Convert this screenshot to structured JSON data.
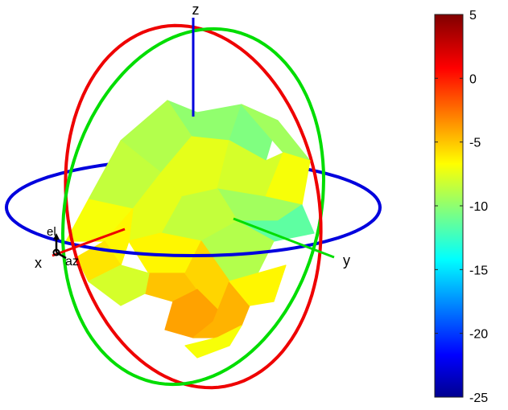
{
  "chart_data": {
    "type": "3d-radiation-pattern",
    "axis_labels": {
      "x": "x",
      "y": "y",
      "z": "z",
      "azimuth": "az",
      "elevation": "el"
    },
    "colorbar": {
      "ticks": [
        5,
        0,
        -5,
        -10,
        -15,
        -20,
        -25
      ],
      "range": [
        -25,
        5
      ],
      "colormap": "jet"
    },
    "ring_colors": {
      "xy_plane": "#0000dd",
      "xz_plane": "#ee0000",
      "yz_plane": "#00dd00"
    },
    "axis_colors": {
      "x": "#ee0000",
      "y": "#00dd00",
      "z": "#0000dd"
    },
    "surface_facets": [
      {
        "value": -9.5
      },
      {
        "value": -10
      },
      {
        "value": -8.5
      },
      {
        "value": -9
      },
      {
        "value": -7
      },
      {
        "value": -7.5
      },
      {
        "value": -8
      },
      {
        "value": -6.5
      },
      {
        "value": -9
      },
      {
        "value": -8
      },
      {
        "value": -11
      },
      {
        "value": -7
      },
      {
        "value": -6.5
      },
      {
        "value": -6
      },
      {
        "value": -8.5
      },
      {
        "value": -5.5
      },
      {
        "value": -6
      },
      {
        "value": -4.5
      },
      {
        "value": -5
      },
      {
        "value": -3.5
      },
      {
        "value": -4
      },
      {
        "value": -6
      },
      {
        "value": -7.5
      },
      {
        "value": -6.5
      }
    ]
  }
}
